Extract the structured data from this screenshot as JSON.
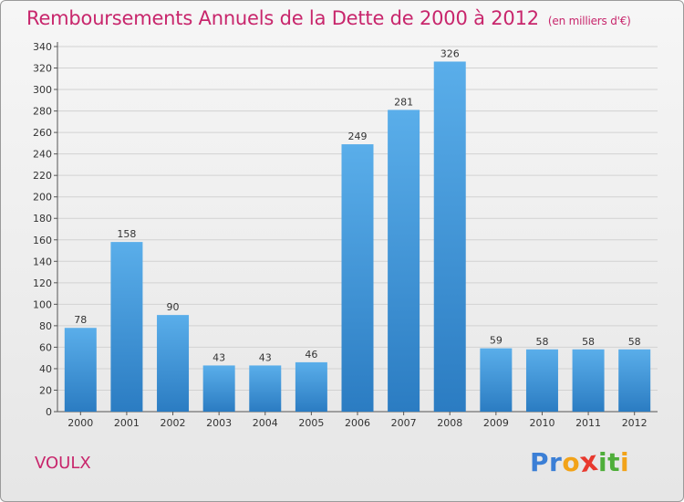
{
  "title": "Remboursements Annuels de la Dette de 2000 à 2012",
  "subtitle": "(en milliers d'€)",
  "commune": "VOULX",
  "logo": {
    "letters": [
      "P",
      "r",
      "o",
      "x",
      "i",
      "t",
      "i"
    ],
    "colors": [
      "#3b7fd6",
      "#3b7fd6",
      "#f2a319",
      "#e8392e",
      "#4fae3a",
      "#4fae3a",
      "#f2a319"
    ]
  },
  "chart_data": {
    "type": "bar",
    "categories": [
      "2000",
      "2001",
      "2002",
      "2003",
      "2004",
      "2005",
      "2006",
      "2007",
      "2008",
      "2009",
      "2010",
      "2011",
      "2012"
    ],
    "values": [
      78,
      158,
      90,
      43,
      43,
      46,
      249,
      281,
      326,
      59,
      58,
      58,
      58
    ],
    "ylim": [
      0,
      340
    ],
    "yticks": [
      0,
      20,
      40,
      60,
      80,
      100,
      120,
      140,
      160,
      180,
      200,
      220,
      240,
      260,
      280,
      300,
      320,
      340
    ],
    "grid": true,
    "bar_color": "#3d8fd6"
  }
}
